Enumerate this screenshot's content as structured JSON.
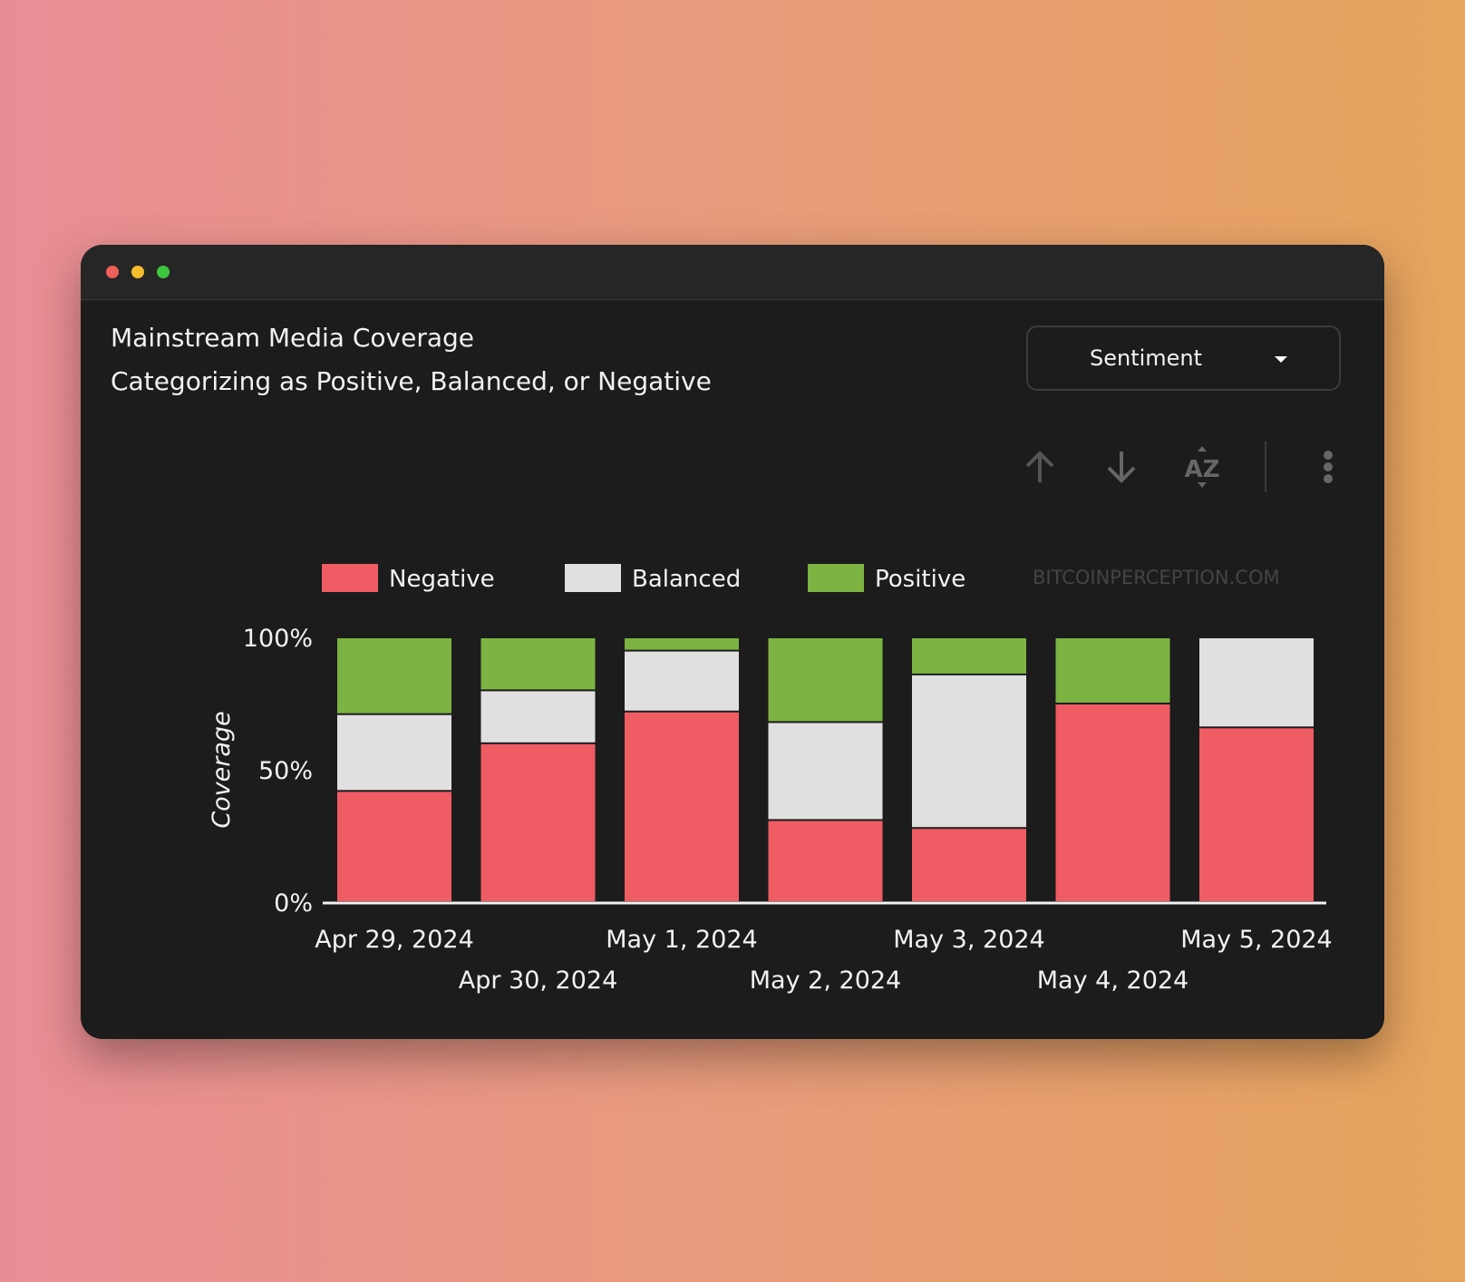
{
  "window": {
    "controls": [
      "close",
      "minimize",
      "maximize"
    ]
  },
  "header": {
    "title": "Mainstream Media Coverage",
    "subtitle": "Categorizing as Positive, Balanced, or Negative"
  },
  "dropdown": {
    "selected": "Sentiment",
    "icon": "caret-down-icon"
  },
  "toolbar": {
    "icons": [
      "arrow-up-icon",
      "arrow-down-icon",
      "sort-az-icon",
      "more-vertical-icon"
    ]
  },
  "watermark": "BITCOINPERCEPTION.COM",
  "colors": {
    "Negative": "#f05c64",
    "Balanced": "#e0e0e0",
    "Positive": "#7db342"
  },
  "chart_data": {
    "type": "bar",
    "stacked": true,
    "categories": [
      "Apr 29, 2024",
      "Apr 30, 2024",
      "May 1, 2024",
      "May 2, 2024",
      "May 3, 2024",
      "May 4, 2024",
      "May 5, 2024"
    ],
    "series": [
      {
        "name": "Negative",
        "values": [
          42,
          60,
          72,
          31,
          28,
          75,
          66
        ]
      },
      {
        "name": "Balanced",
        "values": [
          29,
          20,
          23,
          37,
          58,
          0,
          34
        ]
      },
      {
        "name": "Positive",
        "values": [
          29,
          20,
          5,
          32,
          14,
          25,
          0
        ]
      }
    ],
    "ylabel": "Coverage",
    "xlabel": "",
    "yticks": [
      "0%",
      "50%",
      "100%"
    ],
    "ylim": [
      0,
      100
    ],
    "legend": "top",
    "grid": false
  }
}
